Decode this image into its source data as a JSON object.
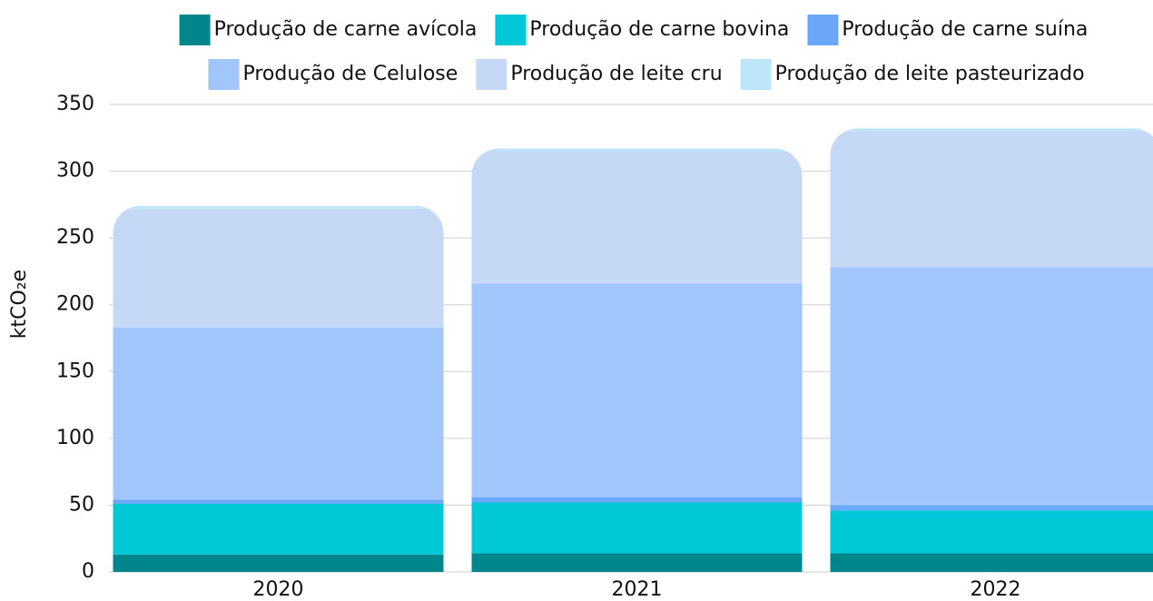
{
  "chart_data": {
    "type": "stacked_bar",
    "y_label": "ktCO₂e",
    "categories": [
      "2020",
      "2021",
      "2022"
    ],
    "series": [
      {
        "name": "Produção de carne avícola",
        "color": "#00868b",
        "values": [
          13,
          14,
          14
        ]
      },
      {
        "name": "Produção de carne bovina",
        "color": "#00c8d7",
        "values": [
          38,
          38,
          32
        ]
      },
      {
        "name": "Produção de carne suína",
        "color": "#6aa8f7",
        "values": [
          3,
          4,
          4
        ]
      },
      {
        "name": "Produção de Celulose",
        "color": "#a0c6fc",
        "values": [
          129,
          160,
          178
        ]
      },
      {
        "name": "Produção de leite cru",
        "color": "#c5d9f7",
        "values": [
          89,
          99,
          102
        ]
      },
      {
        "name": "Produção de leite pasteurizado",
        "color": "#bde6fb",
        "values": [
          2,
          2,
          2
        ]
      }
    ],
    "ylim": [
      0,
      350
    ],
    "yticks": [
      0,
      50,
      100,
      150,
      200,
      250,
      300,
      350
    ],
    "grid": true
  }
}
